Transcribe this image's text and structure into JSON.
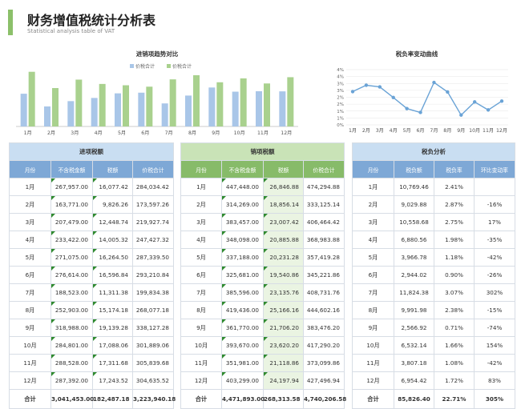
{
  "header": {
    "title": "财务增值税统计分析表",
    "subtitle": "Statistical analysis table of VAT"
  },
  "colors": {
    "accent_green": "#8cc06a",
    "bar_blue": "#a9c6e8",
    "bar_green": "#a9d18e",
    "line_blue": "#6aa3d6",
    "header_blue": "#7ea8d6",
    "header_green": "#87bb69"
  },
  "chart_data": [
    {
      "type": "bar",
      "title": "进销项趋势对比",
      "categories": [
        "1月",
        "2月",
        "3月",
        "4月",
        "5月",
        "6月",
        "7月",
        "8月",
        "9月",
        "10月",
        "11月",
        "12月"
      ],
      "series": [
        {
          "name": "价税合计",
          "values": [
            284034.42,
            173597.26,
            219927.74,
            247427.32,
            287339.5,
            293210.84,
            199834.38,
            268077.18,
            338127.28,
            301889.06,
            305839.68,
            304635.52
          ]
        },
        {
          "name": "价税合计",
          "values": [
            474294.88,
            333125.14,
            406464.42,
            368983.88,
            357419.28,
            345221.86,
            408731.76,
            444602.16,
            383476.2,
            417290.2,
            373099.86,
            427496.94
          ]
        }
      ],
      "legend": "top",
      "grid": false
    },
    {
      "type": "line",
      "title": "税负率变动曲线",
      "categories": [
        "1月",
        "2月",
        "3月",
        "4月",
        "5月",
        "6月",
        "7月",
        "8月",
        "9月",
        "10月",
        "11月",
        "12月"
      ],
      "series": [
        {
          "name": "税负率",
          "values": [
            2.41,
            2.87,
            2.75,
            1.98,
            1.18,
            0.9,
            3.07,
            2.38,
            0.71,
            1.66,
            1.08,
            1.72
          ]
        }
      ],
      "y_ticks": [
        "0%",
        "1%",
        "1%",
        "2%",
        "2%",
        "3%",
        "3%",
        "4%",
        "4%"
      ],
      "ylim": [
        0,
        4
      ],
      "grid": true
    }
  ],
  "input_table": {
    "caption": "进项税额",
    "columns": [
      "月份",
      "不含税金额",
      "税额",
      "价税合计"
    ],
    "rows": [
      [
        "1月",
        "267,957.00",
        "16,077.42",
        "284,034.42"
      ],
      [
        "2月",
        "163,771.00",
        "9,826.26",
        "173,597.26"
      ],
      [
        "3月",
        "207,479.00",
        "12,448.74",
        "219,927.74"
      ],
      [
        "4月",
        "233,422.00",
        "14,005.32",
        "247,427.32"
      ],
      [
        "5月",
        "271,075.00",
        "16,264.50",
        "287,339.50"
      ],
      [
        "6月",
        "276,614.00",
        "16,596.84",
        "293,210.84"
      ],
      [
        "7月",
        "188,523.00",
        "11,311.38",
        "199,834.38"
      ],
      [
        "8月",
        "252,903.00",
        "15,174.18",
        "268,077.18"
      ],
      [
        "9月",
        "318,988.00",
        "19,139.28",
        "338,127.28"
      ],
      [
        "10月",
        "284,801.00",
        "17,088.06",
        "301,889.06"
      ],
      [
        "11月",
        "288,528.00",
        "17,311.68",
        "305,839.68"
      ],
      [
        "12月",
        "287,392.00",
        "17,243.52",
        "304,635.52"
      ]
    ],
    "total": [
      "合计",
      "3,041,453.00",
      "182,487.18",
      "3,223,940.18"
    ]
  },
  "output_table": {
    "caption": "销项税额",
    "columns": [
      "月份",
      "不含税金额",
      "税额",
      "价税合计"
    ],
    "rows": [
      [
        "1月",
        "447,448.00",
        "26,846.88",
        "474,294.88"
      ],
      [
        "2月",
        "314,269.00",
        "18,856.14",
        "333,125.14"
      ],
      [
        "3月",
        "383,457.00",
        "23,007.42",
        "406,464.42"
      ],
      [
        "4月",
        "348,098.00",
        "20,885.88",
        "368,983.88"
      ],
      [
        "5月",
        "337,188.00",
        "20,231.28",
        "357,419.28"
      ],
      [
        "6月",
        "325,681.00",
        "19,540.86",
        "345,221.86"
      ],
      [
        "7月",
        "385,596.00",
        "23,135.76",
        "408,731.76"
      ],
      [
        "8月",
        "419,436.00",
        "25,166.16",
        "444,602.16"
      ],
      [
        "9月",
        "361,770.00",
        "21,706.20",
        "383,476.20"
      ],
      [
        "10月",
        "393,670.00",
        "23,620.20",
        "417,290.20"
      ],
      [
        "11月",
        "351,981.00",
        "21,118.86",
        "373,099.86"
      ],
      [
        "12月",
        "403,299.00",
        "24,197.94",
        "427,496.94"
      ]
    ],
    "total": [
      "合计",
      "4,471,893.00",
      "268,313.58",
      "4,740,206.58"
    ]
  },
  "rate_table": {
    "caption": "税负分析",
    "columns": [
      "月份",
      "税负额",
      "税负率",
      "环比变动率"
    ],
    "rows": [
      [
        "1月",
        "10,769.46",
        "2.41%",
        ""
      ],
      [
        "2月",
        "9,029.88",
        "2.87%",
        "-16%"
      ],
      [
        "3月",
        "10,558.68",
        "2.75%",
        "17%"
      ],
      [
        "4月",
        "6,880.56",
        "1.98%",
        "-35%"
      ],
      [
        "5月",
        "3,966.78",
        "1.18%",
        "-42%"
      ],
      [
        "6月",
        "2,944.02",
        "0.90%",
        "-26%"
      ],
      [
        "7月",
        "11,824.38",
        "3.07%",
        "302%"
      ],
      [
        "8月",
        "9,991.98",
        "2.38%",
        "-15%"
      ],
      [
        "9月",
        "2,566.92",
        "0.71%",
        "-74%"
      ],
      [
        "10月",
        "6,532.14",
        "1.66%",
        "154%"
      ],
      [
        "11月",
        "3,807.18",
        "1.08%",
        "-42%"
      ],
      [
        "12月",
        "6,954.42",
        "1.72%",
        "83%"
      ]
    ],
    "total": [
      "合计",
      "85,826.40",
      "22.71%",
      "305%"
    ]
  }
}
